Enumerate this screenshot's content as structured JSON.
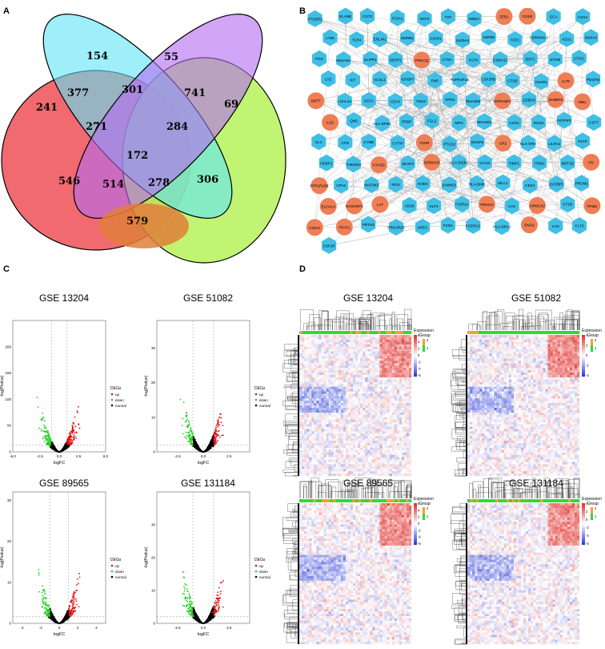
{
  "panel_labels": {
    "a": "A",
    "b": "B",
    "c": "C",
    "d": "D"
  },
  "colors": {
    "venn": [
      "#f06a70",
      "#5ee4f6",
      "#b46af2",
      "#b6f25a"
    ],
    "venn_overlap_orange": "#e07f3a",
    "node_hub": "#ef7e55",
    "node_regular": "#3fbfe6",
    "edge": "#9a9a9a",
    "volcano_up": "#e01010",
    "volcano_down": "#20d020",
    "volcano_normal": "#000000",
    "heat_high": "#e0312c",
    "heat_low": "#2d3ed8",
    "group_orange": "#f3a12a",
    "group_green": "#2fd93a"
  },
  "venn": {
    "counts": [
      {
        "id": "only-a",
        "value": "241"
      },
      {
        "id": "only-b",
        "value": "154"
      },
      {
        "id": "only-c",
        "value": "55"
      },
      {
        "id": "only-d",
        "value": "69"
      },
      {
        "id": "ab",
        "value": "377"
      },
      {
        "id": "bc",
        "value": "301"
      },
      {
        "id": "cd",
        "value": "741"
      },
      {
        "id": "abc",
        "value": "271"
      },
      {
        "id": "bcd",
        "value": "284"
      },
      {
        "id": "abcd",
        "value": "172"
      },
      {
        "id": "ac",
        "value": "546"
      },
      {
        "id": "acd",
        "value": "514"
      },
      {
        "id": "abd",
        "value": "278"
      },
      {
        "id": "bd",
        "value": "306"
      },
      {
        "id": "ad",
        "value": "579"
      }
    ]
  },
  "network": {
    "nodes": [
      {
        "label": "PTGER2",
        "hub": false
      },
      {
        "label": "ELANE",
        "hub": false
      },
      {
        "label": "CST3",
        "hub": false
      },
      {
        "label": "F13A1",
        "hub": false
      },
      {
        "label": "NCF2",
        "hub": false
      },
      {
        "label": "TST",
        "hub": false
      },
      {
        "label": "MNDA",
        "hub": false
      },
      {
        "label": "ZEB1",
        "hub": true
      },
      {
        "label": "CD1B",
        "hub": true
      },
      {
        "label": "GCA",
        "hub": false
      },
      {
        "label": "CD14",
        "hub": false
      },
      {
        "label": "LY86",
        "hub": false
      },
      {
        "label": "TLR4",
        "hub": false
      },
      {
        "label": "ERLIN1",
        "hub": false
      },
      {
        "label": "MSRB1",
        "hub": false
      },
      {
        "label": "C3AR1",
        "hub": false
      },
      {
        "label": "S100A4",
        "hub": false
      },
      {
        "label": "ADRB2",
        "hub": false
      },
      {
        "label": "TFEC",
        "hub": false
      },
      {
        "label": "SERPING1",
        "hub": false
      },
      {
        "label": "AZU1",
        "hub": false
      },
      {
        "label": "MS4A3",
        "hub": false
      },
      {
        "label": "FOS",
        "hub": false
      },
      {
        "label": "MS4A6A",
        "hub": false
      },
      {
        "label": "GLIPR1",
        "hub": false
      },
      {
        "label": "GEPP1",
        "hub": false
      },
      {
        "label": "PRKCQ",
        "hub": true
      },
      {
        "label": "CTSA",
        "hub": false
      },
      {
        "label": "FUT4",
        "hub": false
      },
      {
        "label": "S100A11",
        "hub": false
      },
      {
        "label": "BST1",
        "hub": false
      },
      {
        "label": "STOM",
        "hub": false
      },
      {
        "label": "CTSG",
        "hub": false
      },
      {
        "label": "LYZ",
        "hub": false
      },
      {
        "label": "KIT",
        "hub": false
      },
      {
        "label": "ACSL1",
        "hub": false
      },
      {
        "label": "IGFBP7",
        "hub": false
      },
      {
        "label": "PNP",
        "hub": false
      },
      {
        "label": "TNFRSF1B",
        "hub": false
      },
      {
        "label": "CSF2RB",
        "hub": false
      },
      {
        "label": "CTSB",
        "hub": false
      },
      {
        "label": "C5AR1",
        "hub": false
      },
      {
        "label": "IL7R",
        "hub": true
      },
      {
        "label": "PDGFD",
        "hub": false
      },
      {
        "label": "DNTT",
        "hub": true
      },
      {
        "label": "LGALS1",
        "hub": false
      },
      {
        "label": "CSTA",
        "hub": false
      },
      {
        "label": "CD74",
        "hub": false
      },
      {
        "label": "TNS3",
        "hub": false
      },
      {
        "label": "FPR2",
        "hub": false
      },
      {
        "label": "RNASE6",
        "hub": false
      },
      {
        "label": "GPRASP1",
        "hub": true
      },
      {
        "label": "CEBPD",
        "hub": false
      },
      {
        "label": "SH3BP5",
        "hub": true
      },
      {
        "label": "NINL",
        "hub": true
      },
      {
        "label": "IL32",
        "hub": true
      },
      {
        "label": "QN5",
        "hub": false
      },
      {
        "label": "HLA-DPB1",
        "hub": false
      },
      {
        "label": "PPBP",
        "hub": false
      },
      {
        "label": "FGL2",
        "hub": false
      },
      {
        "label": "MPO",
        "hub": false
      },
      {
        "label": "RNASE3",
        "hub": false
      },
      {
        "label": "CCR1",
        "hub": false
      },
      {
        "label": "RGS2",
        "hub": false
      },
      {
        "label": "PSTPIP2",
        "hub": false
      },
      {
        "label": "CST7",
        "hub": false
      },
      {
        "label": "CLC",
        "hub": false
      },
      {
        "label": "CFD",
        "hub": false
      },
      {
        "label": "CYBB",
        "hub": false
      },
      {
        "label": "CYTIP",
        "hub": false
      },
      {
        "label": "TSHR",
        "hub": true
      },
      {
        "label": "PTGS2",
        "hub": false
      },
      {
        "label": "DUSP6",
        "hub": false
      },
      {
        "label": "CR2",
        "hub": true
      },
      {
        "label": "HLA-DRA",
        "hub": false
      },
      {
        "label": "LILRA2",
        "hub": false
      },
      {
        "label": "PLTP",
        "hub": false
      },
      {
        "label": "HEBP1",
        "hub": false
      },
      {
        "label": "THEMIS2",
        "hub": false
      },
      {
        "label": "FXYD2",
        "hub": true
      },
      {
        "label": "SKAP2",
        "hub": false
      },
      {
        "label": "SERINC5",
        "hub": true
      },
      {
        "label": "HLA-DQB1",
        "hub": false
      },
      {
        "label": "VCAN",
        "hub": false
      },
      {
        "label": "TIMP1",
        "hub": false
      },
      {
        "label": "TRIB1",
        "hub": false
      },
      {
        "label": "MEF2D",
        "hub": false
      },
      {
        "label": "ITK",
        "hub": true
      },
      {
        "label": "PPP1R16B",
        "hub": true
      },
      {
        "label": "CPA3",
        "hub": false
      },
      {
        "label": "MAP3K5",
        "hub": false
      },
      {
        "label": "IRS2",
        "hub": false
      },
      {
        "label": "HHEX",
        "hub": false
      },
      {
        "label": "SAMHD1",
        "hub": false
      },
      {
        "label": "HLA-DMB",
        "hub": false
      },
      {
        "label": "MLC1",
        "hub": false
      },
      {
        "label": "CD44",
        "hub": false
      },
      {
        "label": "IGF2BP3",
        "hub": false
      },
      {
        "label": "PROM1",
        "hub": false
      },
      {
        "label": "ELOVL4",
        "hub": true
      },
      {
        "label": "RASGRP1",
        "hub": true
      },
      {
        "label": "LAT",
        "hub": true
      },
      {
        "label": "CD36",
        "hub": false
      },
      {
        "label": "KLF4",
        "hub": false
      },
      {
        "label": "FCER1A",
        "hub": false
      },
      {
        "label": "PRKCH",
        "hub": true
      },
      {
        "label": "CA2",
        "hub": false
      },
      {
        "label": "ARMCX2",
        "hub": true
      },
      {
        "label": "CTSS",
        "hub": false
      },
      {
        "label": "TRIB2",
        "hub": true
      },
      {
        "label": "CD247",
        "hub": true
      },
      {
        "label": "TRAT1",
        "hub": true
      },
      {
        "label": "PRTN3",
        "hub": false
      },
      {
        "label": "PRKAR2B",
        "hub": false
      },
      {
        "label": "NFE2",
        "hub": false
      },
      {
        "label": "FCN1",
        "hub": false
      },
      {
        "label": "FCER1G",
        "hub": false
      },
      {
        "label": "HLA-DPA1",
        "hub": false
      },
      {
        "label": "ENO2",
        "hub": true
      },
      {
        "label": "LYN",
        "hub": false
      },
      {
        "label": "FLT3",
        "hub": false
      },
      {
        "label": "CSF1R",
        "hub": false
      }
    ]
  },
  "volcano_titles": [
    "GSE 13204",
    "GSE 51082",
    "GSE 89565",
    "GSE 131184"
  ],
  "heatmap_titles": [
    "GSE 13204",
    "GSE 51082",
    "GSE 89565",
    "GSE 131184"
  ],
  "legend": {
    "title": "DEGs",
    "items": [
      "up",
      "down",
      "normal"
    ]
  },
  "axis": {
    "x": "logFC",
    "y": "-log(Pvalue)"
  },
  "heatmap_legend": {
    "expression": "Expression",
    "group": "Group"
  },
  "chart_data": [
    {
      "type": "scatter",
      "title": "GSE 13204",
      "xlabel": "logFC",
      "ylabel": "-log(Pvalue)",
      "xlim": [
        -6,
        6
      ],
      "ylim": [
        0,
        250
      ],
      "x_ticks": [
        "-6.0",
        "-2.5",
        "0.0",
        "2.5",
        "6.0"
      ],
      "y_ticks": [
        "0",
        "50",
        "100",
        "150",
        "200"
      ],
      "series": [
        {
          "name": "up"
        },
        {
          "name": "down"
        },
        {
          "name": "normal"
        }
      ]
    },
    {
      "type": "scatter",
      "title": "GSE 51082",
      "xlabel": "logFC",
      "ylabel": "-log(Pvalue)",
      "xlim": [
        -4.5,
        4.5
      ],
      "ylim": [
        0,
        38
      ],
      "x_ticks": [
        "-2.5",
        "0.0",
        "2.5"
      ],
      "y_ticks": [
        "0",
        "10",
        "20",
        "30"
      ],
      "series": [
        {
          "name": "up"
        },
        {
          "name": "down"
        },
        {
          "name": "normal"
        }
      ]
    },
    {
      "type": "scatter",
      "title": "GSE 89565",
      "xlabel": "logFC",
      "ylabel": "-log(Pvalue)",
      "xlim": [
        -5,
        5
      ],
      "ylim": [
        0,
        32
      ],
      "x_ticks": [
        "-4",
        "-2",
        "0",
        "2",
        "4"
      ],
      "y_ticks": [
        "0",
        "10",
        "20",
        "30"
      ],
      "series": [
        {
          "name": "up"
        },
        {
          "name": "down"
        },
        {
          "name": "normal"
        }
      ]
    },
    {
      "type": "scatter",
      "title": "GSE 131184",
      "xlabel": "logFC",
      "ylabel": "-log(Pvalue)",
      "xlim": [
        -4.5,
        4.5
      ],
      "ylim": [
        0,
        40
      ],
      "x_ticks": [
        "-2.5",
        "0.0",
        "2.5"
      ],
      "y_ticks": [
        "0",
        "10",
        "20",
        "30"
      ],
      "series": [
        {
          "name": "up"
        },
        {
          "name": "down"
        },
        {
          "name": "normal"
        }
      ]
    },
    {
      "type": "heatmap",
      "title": "GSE 13204",
      "colorbar_ticks": [
        "6",
        "4",
        "2",
        "0",
        "-2",
        "-4",
        "-6"
      ],
      "group_ticks": [
        "2",
        "1"
      ]
    },
    {
      "type": "heatmap",
      "title": "GSE 51082",
      "colorbar_ticks": [
        "4",
        "2",
        "0",
        "-2",
        "-4"
      ],
      "group_ticks": [
        "2",
        "1"
      ]
    },
    {
      "type": "heatmap",
      "title": "GSE 89565",
      "colorbar_ticks": [
        "6",
        "4",
        "2",
        "0",
        "-2",
        "-4",
        "-6"
      ],
      "group_ticks": [
        "2",
        "1"
      ]
    },
    {
      "type": "heatmap",
      "title": "GSE 131184",
      "colorbar_ticks": [
        "4",
        "2",
        "0",
        "-2",
        "-4",
        "-6"
      ],
      "group_ticks": [
        "2",
        "1"
      ]
    }
  ]
}
